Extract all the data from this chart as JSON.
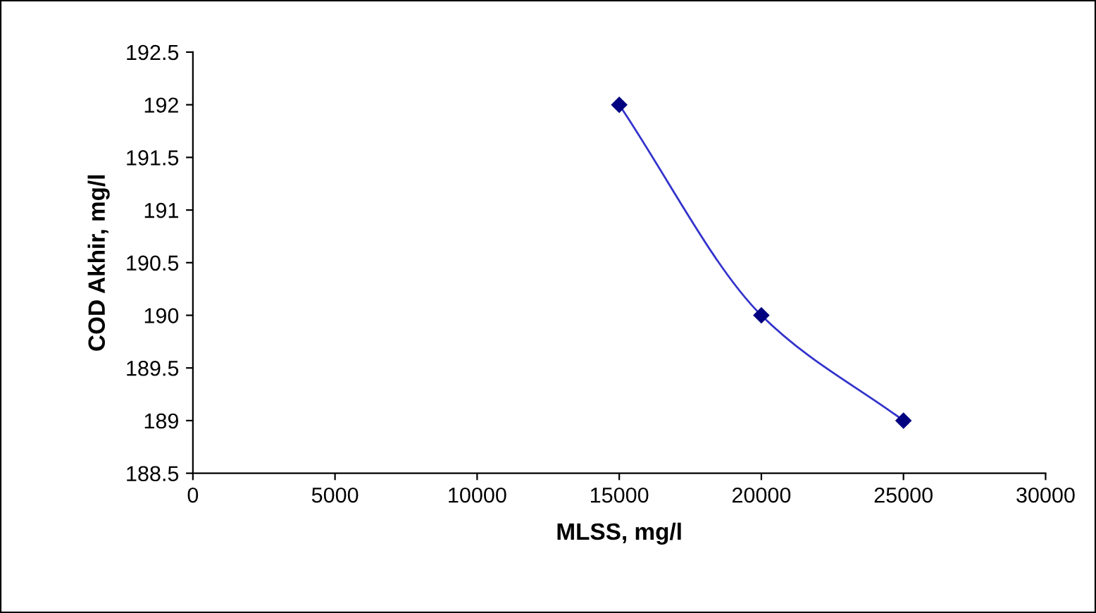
{
  "chart_data": {
    "type": "line",
    "xlabel": "MLSS, mg/l",
    "ylabel": "COD Akhir, mg/l",
    "x": [
      15000,
      20000,
      25000
    ],
    "series": [
      {
        "color": "#000080",
        "values": [
          192,
          190,
          189
        ]
      }
    ],
    "xlim": [
      0,
      30000
    ],
    "xticks": [
      0,
      5000,
      10000,
      15000,
      20000,
      25000,
      30000
    ],
    "ylim": [
      188.5,
      192.5
    ],
    "yticks": [
      188.5,
      189,
      189.5,
      190,
      190.5,
      191,
      191.5,
      192,
      192.5
    ],
    "marker": "diamond",
    "line_style": "solid",
    "grid": false,
    "legend": false
  }
}
